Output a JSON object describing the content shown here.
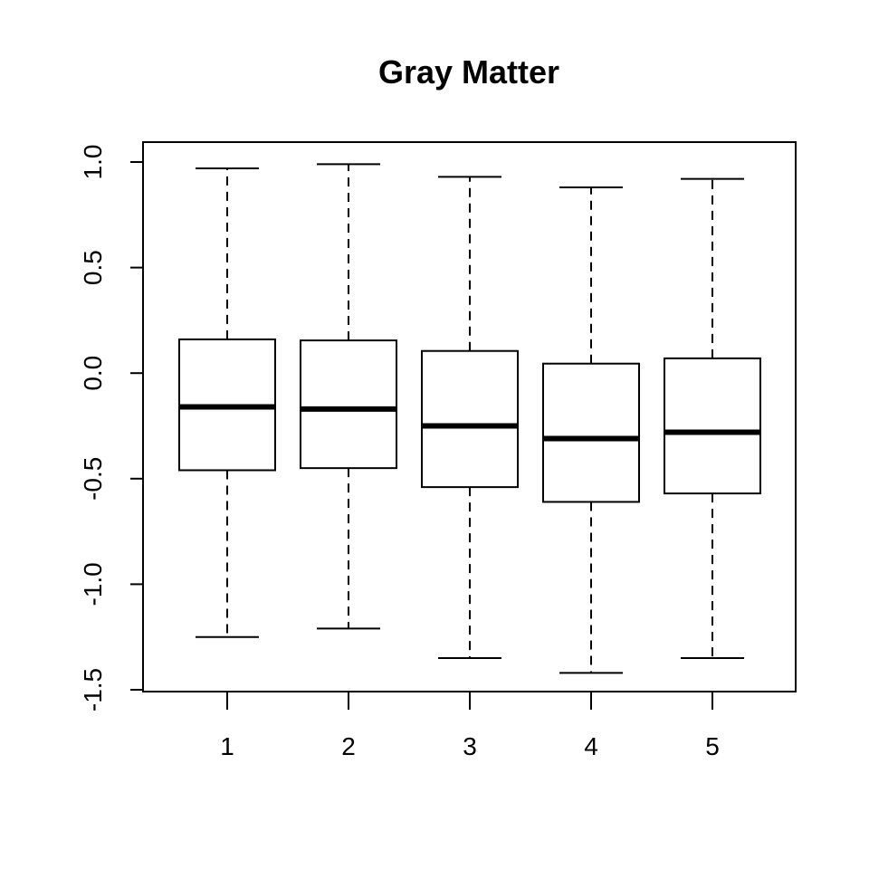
{
  "chart_data": {
    "type": "boxplot",
    "title": "Gray Matter",
    "xlabel": "",
    "ylabel": "",
    "categories": [
      "1",
      "2",
      "3",
      "4",
      "5"
    ],
    "ylim": [
      -1.5,
      1.0
    ],
    "yticks": [
      "-1.5",
      "-1.0",
      "-0.5",
      "0.0",
      "0.5",
      "1.0"
    ],
    "grid": false,
    "boxes": [
      {
        "category": "1",
        "whisker_low": -1.25,
        "q1": -0.46,
        "median": -0.16,
        "q3": 0.16,
        "whisker_high": 0.97
      },
      {
        "category": "2",
        "whisker_low": -1.21,
        "q1": -0.45,
        "median": -0.17,
        "q3": 0.155,
        "whisker_high": 0.99
      },
      {
        "category": "3",
        "whisker_low": -1.35,
        "q1": -0.54,
        "median": -0.25,
        "q3": 0.105,
        "whisker_high": 0.93
      },
      {
        "category": "4",
        "whisker_low": -1.42,
        "q1": -0.61,
        "median": -0.31,
        "q3": 0.045,
        "whisker_high": 0.88
      },
      {
        "category": "5",
        "whisker_low": -1.35,
        "q1": -0.57,
        "median": -0.28,
        "q3": 0.07,
        "whisker_high": 0.92
      }
    ]
  }
}
